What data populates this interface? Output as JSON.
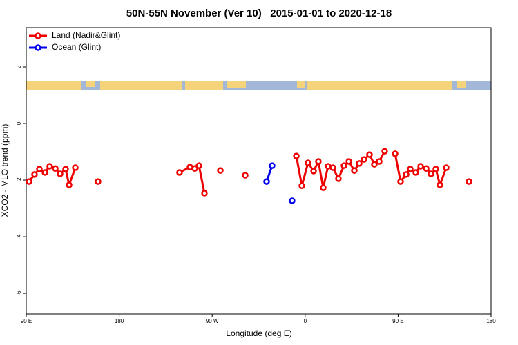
{
  "chart_data": {
    "type": "line",
    "title": "50N-55N November (Ver 10)   2015-01-01 to 2020-12-18",
    "x_label": "Longitude (deg E)",
    "y_label": "XCO2 - MLO trend (ppm)",
    "xlim": [
      90,
      540
    ],
    "ylim": [
      -6.73,
      3.39
    ],
    "xticks": [
      {
        "value": 90,
        "label": "90 E"
      },
      180,
      {
        "value": 270,
        "label": "90 W"
      },
      {
        "value": 360,
        "label": "0"
      },
      {
        "value": 450,
        "label": "90 E"
      },
      {
        "value": 540,
        "label": "180"
      }
    ],
    "yticks": [
      2,
      0,
      -2,
      -4,
      -6
    ],
    "legend": "top-left",
    "series": [
      {
        "name": "Land (Nadir&Glint)",
        "color": "#ee0000",
        "x": [
          92.7,
          98.0,
          102.7,
          108.1,
          112.7,
          118.1,
          122.8,
          128.1,
          131.5,
          137.5,
          null,
          159.5,
          null,
          238.4,
          248.5,
          253.2,
          257.2,
          262.5,
          null,
          277.9,
          null,
          302.0,
          null,
          351.5,
          356.8,
          362.8,
          368.2,
          372.8,
          377.5,
          382.2,
          386.9,
          392.2,
          397.6,
          402.3,
          407.6,
          412.3,
          417.0,
          422.3,
          427.0,
          431.7,
          437.0,
          null,
          447.1,
          452.4,
          457.8,
          461.8,
          467.1,
          471.8,
          477.2,
          481.8,
          486.5,
          490.5,
          496.6,
          null,
          518.6
        ],
        "values": [
          -2.05,
          -1.8,
          -1.61,
          -1.73,
          -1.51,
          -1.59,
          -1.78,
          -1.61,
          -2.17,
          -1.56,
          null,
          -2.05,
          null,
          -1.73,
          -1.54,
          -1.59,
          -1.49,
          -2.46,
          null,
          -1.66,
          null,
          -1.83,
          null,
          -1.15,
          -2.2,
          -1.39,
          -1.68,
          -1.34,
          -2.27,
          -1.51,
          -1.56,
          -1.95,
          -1.49,
          -1.34,
          -1.66,
          -1.41,
          -1.27,
          -1.1,
          -1.44,
          -1.34,
          -0.98,
          null,
          -1.07,
          -2.05,
          -1.8,
          -1.61,
          -1.73,
          -1.51,
          -1.59,
          -1.78,
          -1.61,
          -2.17,
          -1.56,
          null,
          -2.05
        ]
      },
      {
        "name": "Ocean (Glint)",
        "color": "#0000ee",
        "x": [
          322.7,
          328.0,
          null,
          347.4
        ],
        "values": [
          -2.05,
          -1.49,
          null,
          -2.73
        ]
      }
    ]
  }
}
